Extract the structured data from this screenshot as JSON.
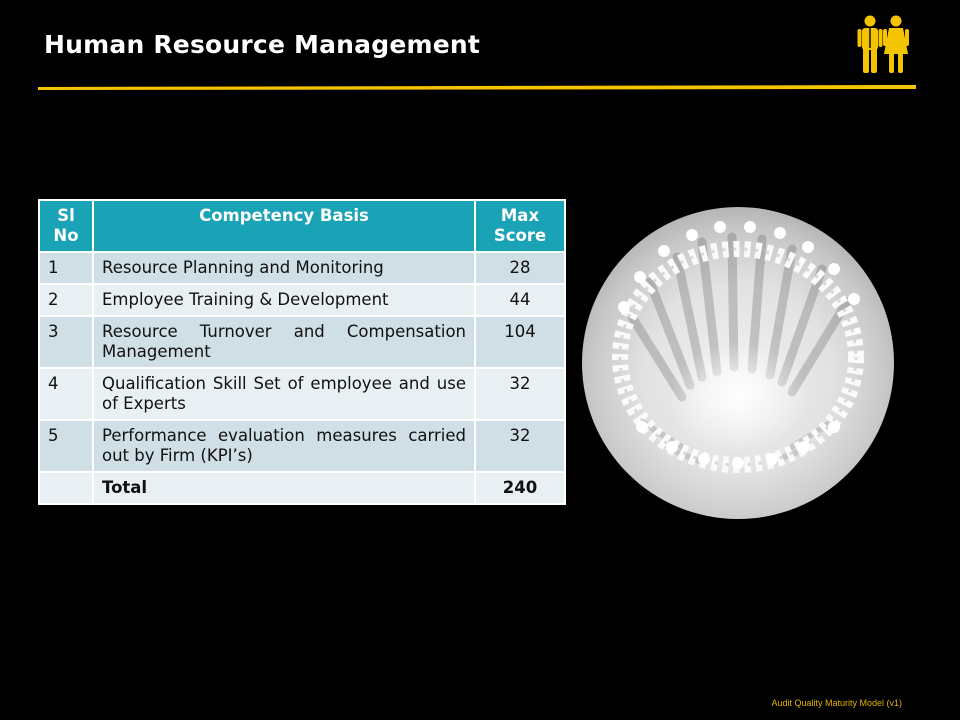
{
  "slide": {
    "title": "Human Resource Management",
    "footer": "Audit Quality Maturity Model (v1)",
    "accent_color": "#f5c400",
    "header_color": "#1aa2b6",
    "icon": "man-woman-icon",
    "image": "paper-people-circle-photo"
  },
  "table": {
    "headers": [
      "Sl No",
      "Competency Basis",
      "Max Score"
    ],
    "rows": [
      {
        "sl": "1",
        "basis": "Resource Planning and Monitoring",
        "score": "28"
      },
      {
        "sl": "2",
        "basis": "Employee Training & Development",
        "score": "44"
      },
      {
        "sl": "3",
        "basis": "Resource Turnover and Compensation Management",
        "score": "104"
      },
      {
        "sl": "4",
        "basis": "Qualification Skill Set of employee and use of Experts",
        "score": "32"
      },
      {
        "sl": "5",
        "basis": "Performance evaluation measures carried out by Firm (KPI’s)",
        "score": "32"
      }
    ],
    "total": {
      "sl": "",
      "label": "Total",
      "score": "240"
    }
  }
}
